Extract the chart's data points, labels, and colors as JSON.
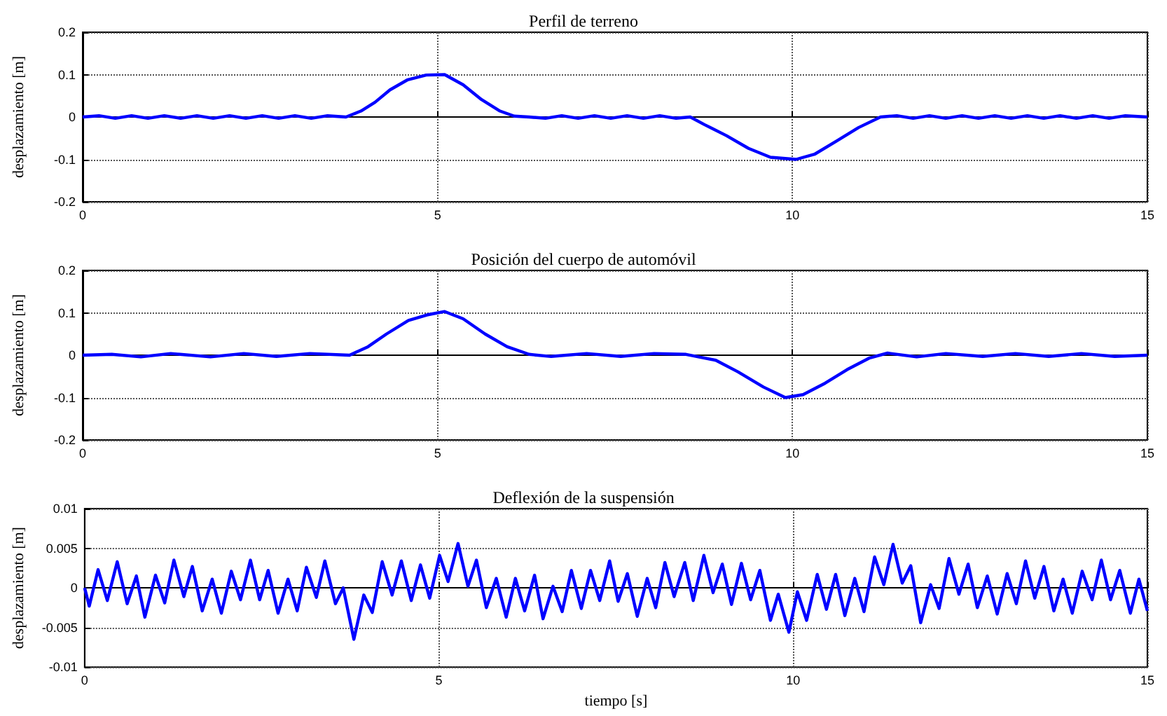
{
  "chart_data": [
    {
      "type": "line",
      "title": "Perfil de terreno",
      "ylabel": "desplazamiento [m]",
      "color": "#0000ff",
      "grid": true,
      "xlim": [
        0,
        15
      ],
      "xticks": [
        0,
        5,
        10,
        15
      ],
      "ylim": [
        -0.2,
        0.2
      ],
      "yticks": [
        -0.2,
        -0.1,
        0,
        0.1,
        0.2
      ],
      "x": [
        0,
        0.23,
        0.46,
        0.69,
        0.92,
        1.15,
        1.38,
        1.61,
        1.84,
        2.07,
        2.3,
        2.53,
        2.76,
        2.99,
        3.22,
        3.45,
        3.71,
        3.92,
        4.12,
        4.33,
        4.58,
        4.84,
        5.1,
        5.36,
        5.62,
        5.88,
        6.08,
        6.29,
        6.52,
        6.75,
        6.98,
        7.21,
        7.44,
        7.67,
        7.9,
        8.13,
        8.36,
        8.56,
        8.76,
        9.07,
        9.38,
        9.69,
        10.05,
        10.31,
        10.62,
        10.93,
        11.24,
        11.47,
        11.7,
        11.93,
        12.16,
        12.39,
        12.62,
        12.85,
        13.08,
        13.31,
        13.54,
        13.77,
        14,
        14.23,
        14.46,
        14.69,
        15
      ],
      "values": [
        0,
        0.003,
        -0.003,
        0.003,
        -0.003,
        0.003,
        -0.003,
        0.003,
        -0.003,
        0.003,
        -0.003,
        0.003,
        -0.003,
        0.003,
        -0.003,
        0.003,
        0,
        0.014,
        0.035,
        0.064,
        0.088,
        0.099,
        0.1,
        0.076,
        0.041,
        0.014,
        0.002,
        0,
        -0.003,
        0.003,
        -0.003,
        0.003,
        -0.003,
        0.003,
        -0.003,
        0.003,
        -0.003,
        0,
        -0.018,
        -0.044,
        -0.074,
        -0.095,
        -0.1,
        -0.088,
        -0.057,
        -0.025,
        0,
        0.003,
        -0.003,
        0.003,
        -0.003,
        0.003,
        -0.003,
        0.003,
        -0.003,
        0.003,
        -0.003,
        0.003,
        -0.003,
        0.003,
        -0.003,
        0.003,
        0
      ]
    },
    {
      "type": "line",
      "title": "Posición del cuerpo de automóvil",
      "ylabel": "desplazamiento [m]",
      "color": "#0000ff",
      "grid": true,
      "xlim": [
        0,
        15
      ],
      "xticks": [
        0,
        5,
        10,
        15
      ],
      "ylim": [
        -0.2,
        0.2
      ],
      "yticks": [
        -0.2,
        -0.1,
        0,
        0.1,
        0.2
      ],
      "x": [
        0,
        0.41,
        0.82,
        1.24,
        1.8,
        2.27,
        2.73,
        3.2,
        3.76,
        4.02,
        4.28,
        4.59,
        4.85,
        5.1,
        5.36,
        5.67,
        5.98,
        6.29,
        6.6,
        7.1,
        7.58,
        8.05,
        8.5,
        8.92,
        9.23,
        9.59,
        9.9,
        10.15,
        10.46,
        10.77,
        11.08,
        11.34,
        11.75,
        12.16,
        12.68,
        13.14,
        13.61,
        14.07,
        14.54,
        15
      ],
      "values": [
        0,
        0.002,
        -0.004,
        0.004,
        -0.004,
        0.004,
        -0.003,
        0.004,
        0,
        0.02,
        0.05,
        0.082,
        0.095,
        0.103,
        0.086,
        0.05,
        0.02,
        0.002,
        -0.003,
        0.004,
        -0.003,
        0.004,
        0.002,
        -0.012,
        -0.039,
        -0.075,
        -0.1,
        -0.093,
        -0.066,
        -0.034,
        -0.007,
        0.005,
        -0.004,
        0.004,
        -0.003,
        0.004,
        -0.003,
        0.004,
        -0.003,
        0
      ]
    },
    {
      "type": "line",
      "title": "Deflexión de la suspensión",
      "xlabel": "tiempo [s]",
      "ylabel": "desplazamiento [m]",
      "color": "#0000ff",
      "grid": true,
      "xlim": [
        0,
        15
      ],
      "xticks": [
        0,
        5,
        10,
        15
      ],
      "ylim": [
        -0.01,
        0.01
      ],
      "yticks": [
        -0.01,
        -0.005,
        0,
        0.005,
        0.01
      ],
      "x": [
        0,
        0.065,
        0.19,
        0.32,
        0.46,
        0.6,
        0.73,
        0.85,
        1,
        1.13,
        1.26,
        1.4,
        1.52,
        1.66,
        1.8,
        1.93,
        2.07,
        2.2,
        2.34,
        2.47,
        2.59,
        2.73,
        2.87,
        3,
        3.13,
        3.27,
        3.39,
        3.54,
        3.65,
        3.8,
        3.94,
        4.06,
        4.2,
        4.34,
        4.47,
        4.61,
        4.74,
        4.87,
        5.01,
        5.13,
        5.27,
        5.41,
        5.53,
        5.67,
        5.81,
        5.95,
        6.08,
        6.21,
        6.35,
        6.47,
        6.61,
        6.74,
        6.87,
        7.01,
        7.14,
        7.27,
        7.41,
        7.53,
        7.66,
        7.8,
        7.94,
        8.06,
        8.19,
        8.32,
        8.47,
        8.59,
        8.74,
        8.87,
        9,
        9.13,
        9.27,
        9.4,
        9.53,
        9.68,
        9.79,
        9.94,
        10.06,
        10.19,
        10.34,
        10.47,
        10.6,
        10.73,
        10.87,
        11,
        11.15,
        11.28,
        11.41,
        11.54,
        11.66,
        11.8,
        11.94,
        12.06,
        12.2,
        12.34,
        12.47,
        12.6,
        12.74,
        12.88,
        13.02,
        13.15,
        13.28,
        13.41,
        13.54,
        13.68,
        13.81,
        13.94,
        14.08,
        14.22,
        14.35,
        14.48,
        14.61,
        14.76,
        14.88,
        15
      ],
      "values": [
        0,
        -0.0023,
        0.0023,
        -0.0016,
        0.0033,
        -0.002,
        0.0015,
        -0.0037,
        0.0016,
        -0.0019,
        0.0035,
        -0.0011,
        0.0027,
        -0.0029,
        0.0011,
        -0.0032,
        0.0021,
        -0.0015,
        0.0035,
        -0.0015,
        0.0022,
        -0.0032,
        0.0011,
        -0.0029,
        0.0026,
        -0.0012,
        0.0034,
        -0.002,
        0,
        -0.0065,
        -0.0009,
        -0.0031,
        0.0033,
        -0.0009,
        0.0034,
        -0.0016,
        0.0029,
        -0.0013,
        0.0041,
        0.0008,
        0.0056,
        0.0002,
        0.0035,
        -0.0025,
        0.0012,
        -0.0037,
        0.0012,
        -0.0029,
        0.0016,
        -0.0039,
        0.0002,
        -0.003,
        0.0022,
        -0.0026,
        0.0022,
        -0.0016,
        0.0034,
        -0.0017,
        0.0018,
        -0.0036,
        0.0012,
        -0.0025,
        0.0032,
        -0.0011,
        0.0032,
        -0.0016,
        0.0041,
        -0.0006,
        0.003,
        -0.0021,
        0.0031,
        -0.0015,
        0.0022,
        -0.0041,
        -0.0008,
        -0.0056,
        -0.0005,
        -0.0041,
        0.0017,
        -0.0027,
        0.0017,
        -0.0035,
        0.0012,
        -0.003,
        0.0039,
        0.0004,
        0.0055,
        0.0006,
        0.0028,
        -0.0044,
        0.0004,
        -0.0026,
        0.0037,
        -0.0008,
        0.003,
        -0.0025,
        0.0015,
        -0.0033,
        0.0018,
        -0.002,
        0.0034,
        -0.0013,
        0.0027,
        -0.0029,
        0.0011,
        -0.0032,
        0.0021,
        -0.0015,
        0.0035,
        -0.0015,
        0.0022,
        -0.0032,
        0.0011,
        -0.0029
      ]
    }
  ]
}
